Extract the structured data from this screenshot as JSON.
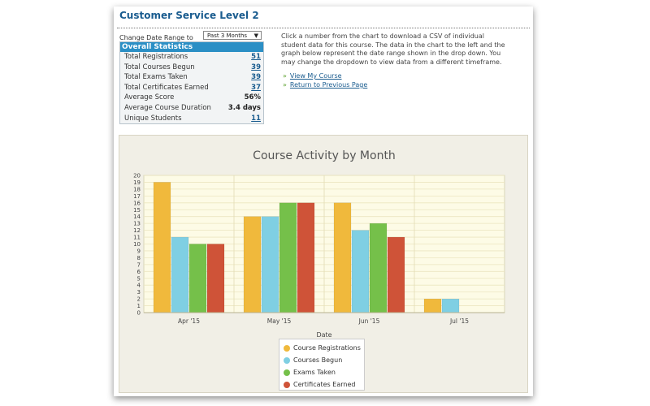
{
  "page": {
    "title": "Customer Service Level 2",
    "range_label": "Change Date Range to",
    "range_value": "Past 3 Months",
    "description": "Click a number from the chart to download a CSV of individual student data for this course. The data in the chart to the left and the graph below represent the date range shown in the drop down. You may change the dropdown to view data from a different timeframe.",
    "links": [
      "View My Course",
      "Return to Previous Page"
    ]
  },
  "stats": {
    "header": "Overall Statistics",
    "rows": [
      {
        "label": "Total Registrations",
        "value": "51",
        "link": true
      },
      {
        "label": "Total Courses Begun",
        "value": "39",
        "link": true
      },
      {
        "label": "Total Exams Taken",
        "value": "39",
        "link": true
      },
      {
        "label": "Total Certificates Earned",
        "value": "37",
        "link": true
      },
      {
        "label": "Average Score",
        "value": "56%",
        "link": false
      },
      {
        "label": "Average Course Duration",
        "value": "3.4 days",
        "link": false
      },
      {
        "label": "Unique Students",
        "value": "11",
        "link": true
      }
    ]
  },
  "chart_data": {
    "type": "bar",
    "title": "Course Activity by Month",
    "xlabel": "Date",
    "ylabel": "",
    "ylim": [
      0,
      20
    ],
    "yticks": [
      0,
      1,
      2,
      3,
      4,
      5,
      6,
      7,
      8,
      9,
      10,
      11,
      12,
      13,
      14,
      15,
      16,
      17,
      18,
      19,
      20
    ],
    "categories": [
      "Apr '15",
      "May '15",
      "Jun '15",
      "Jul '15"
    ],
    "series": [
      {
        "name": "Course Registrations",
        "color": "#f0b93c",
        "values": [
          19,
          14,
          16,
          2
        ]
      },
      {
        "name": "Courses Begun",
        "color": "#7fcfe3",
        "values": [
          11,
          14,
          12,
          2
        ]
      },
      {
        "name": "Exams Taken",
        "color": "#75c04a",
        "values": [
          10,
          16,
          13,
          null
        ]
      },
      {
        "name": "Certificates Earned",
        "color": "#cf5338",
        "values": [
          10,
          16,
          11,
          null
        ]
      }
    ],
    "grid": true,
    "legend": "bottom-center"
  }
}
